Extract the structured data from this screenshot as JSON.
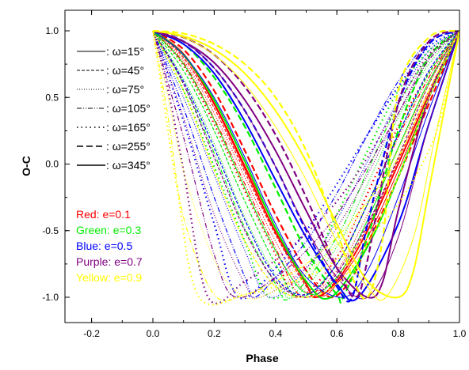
{
  "chart_data": {
    "type": "line",
    "title": "",
    "xlabel": "Phase",
    "ylabel": "O-C",
    "xlim": [
      -0.3,
      1.0
    ],
    "ylim": [
      -1.2,
      1.2
    ],
    "xticks": [
      -0.2,
      0.0,
      0.2,
      0.4,
      0.6,
      0.8,
      1.0
    ],
    "xtick_labels": [
      "-0.2",
      "0.0",
      "0.2",
      "0.4",
      "0.6",
      "0.8",
      "1.0"
    ],
    "yticks": [
      -1.0,
      -0.5,
      0.0,
      0.5,
      1.0
    ],
    "ytick_labels": [
      "-1.0",
      "-0.5",
      "0.0",
      "0.5",
      "1.0"
    ],
    "grid": false,
    "legend_placement": "top-left",
    "omega_legend": [
      {
        "label": ": ω=15°",
        "omega": 15,
        "style": "solid-thin"
      },
      {
        "label": ": ω=45°",
        "omega": 45,
        "style": "dash-short"
      },
      {
        "label": ": ω=75°",
        "omega": 75,
        "style": "dotted"
      },
      {
        "label": ": ω=105°",
        "omega": 105,
        "style": "dash-dot-dot"
      },
      {
        "label": ": ω=165°",
        "omega": 165,
        "style": "dotted-sparse"
      },
      {
        "label": ": ω=255°",
        "omega": 255,
        "style": "dash-long"
      },
      {
        "label": ": ω=345°",
        "omega": 345,
        "style": "solid-thick"
      }
    ],
    "eccentricity_legend": [
      {
        "label": "Red: e=0.1",
        "e": 0.1,
        "color": "#ff0000"
      },
      {
        "label": "Green: e=0.3",
        "e": 0.3,
        "color": "#00ee00"
      },
      {
        "label": "Blue: e=0.5",
        "e": 0.5,
        "color": "#0000ff"
      },
      {
        "label": "Purple: e=0.7",
        "e": 0.7,
        "color": "#800080"
      },
      {
        "label": "Yellow: e=0.9",
        "e": 0.9,
        "color": "#ffff00"
      }
    ],
    "series": [
      {
        "e": 0.1,
        "omega": 15,
        "x": [
          0.0,
          0.1,
          0.2,
          0.3,
          0.4,
          0.5,
          0.55,
          0.6,
          0.7,
          0.8,
          0.9,
          1.0
        ],
        "y": [
          1.0,
          0.83,
          0.46,
          -0.01,
          -0.48,
          -0.88,
          -0.99,
          -0.9,
          -0.55,
          -0.05,
          0.5,
          1.0
        ]
      },
      {
        "e": 0.1,
        "omega": 45,
        "x": [
          0.0,
          0.1,
          0.2,
          0.3,
          0.4,
          0.5,
          0.54,
          0.6,
          0.7,
          0.8,
          0.9,
          1.0
        ],
        "y": [
          1.0,
          0.8,
          0.42,
          -0.06,
          -0.53,
          -0.92,
          -1.0,
          -0.86,
          -0.47,
          0.03,
          0.55,
          1.0
        ]
      },
      {
        "e": 0.1,
        "omega": 75,
        "x": [
          0.0,
          0.1,
          0.2,
          0.3,
          0.4,
          0.5,
          0.6,
          0.7,
          0.8,
          0.9,
          1.0
        ],
        "y": [
          1.0,
          0.78,
          0.38,
          -0.1,
          -0.58,
          -0.96,
          -0.8,
          -0.38,
          0.12,
          0.6,
          1.0
        ]
      },
      {
        "e": 0.1,
        "omega": 105,
        "x": [
          0.0,
          0.1,
          0.2,
          0.3,
          0.4,
          0.49,
          0.6,
          0.7,
          0.8,
          0.9,
          1.0
        ],
        "y": [
          1.0,
          0.76,
          0.34,
          -0.15,
          -0.63,
          -1.0,
          -0.75,
          -0.3,
          0.2,
          0.65,
          1.0
        ]
      },
      {
        "e": 0.1,
        "omega": 165,
        "x": [
          0.0,
          0.1,
          0.2,
          0.3,
          0.4,
          0.47,
          0.6,
          0.7,
          0.8,
          0.9,
          1.0
        ],
        "y": [
          1.0,
          0.74,
          0.3,
          -0.2,
          -0.68,
          -1.0,
          -0.7,
          -0.22,
          0.28,
          0.68,
          1.0
        ]
      },
      {
        "e": 0.1,
        "omega": 255,
        "x": [
          0.0,
          0.1,
          0.2,
          0.3,
          0.4,
          0.5,
          0.58,
          0.65,
          0.7,
          0.8,
          0.9,
          1.0
        ],
        "y": [
          1.0,
          0.86,
          0.55,
          0.1,
          -0.38,
          -0.8,
          -1.0,
          -0.85,
          -0.6,
          -0.1,
          0.45,
          1.0
        ]
      },
      {
        "e": 0.1,
        "omega": 345,
        "x": [
          0.0,
          0.1,
          0.2,
          0.3,
          0.4,
          0.5,
          0.53,
          0.6,
          0.7,
          0.8,
          0.9,
          1.0
        ],
        "y": [
          1.0,
          0.82,
          0.45,
          -0.03,
          -0.51,
          -0.9,
          -1.0,
          -0.88,
          -0.5,
          0.0,
          0.52,
          1.0
        ]
      },
      {
        "e": 0.3,
        "omega": 15,
        "x": [
          0.0,
          0.1,
          0.2,
          0.3,
          0.4,
          0.5,
          0.6,
          0.7,
          0.8,
          0.9,
          1.0
        ],
        "y": [
          1.0,
          0.75,
          0.33,
          -0.18,
          -0.65,
          -0.97,
          -0.85,
          -0.42,
          0.12,
          0.62,
          1.0
        ]
      },
      {
        "e": 0.3,
        "omega": 45,
        "x": [
          0.0,
          0.1,
          0.2,
          0.3,
          0.4,
          0.48,
          0.6,
          0.7,
          0.8,
          0.9,
          1.0
        ],
        "y": [
          1.0,
          0.7,
          0.25,
          -0.28,
          -0.75,
          -1.0,
          -0.75,
          -0.3,
          0.22,
          0.68,
          1.0
        ]
      },
      {
        "e": 0.3,
        "omega": 75,
        "x": [
          0.0,
          0.1,
          0.2,
          0.3,
          0.4,
          0.46,
          0.6,
          0.7,
          0.8,
          0.9,
          1.0
        ],
        "y": [
          1.0,
          0.64,
          0.15,
          -0.4,
          -0.84,
          -1.0,
          -0.62,
          -0.15,
          0.35,
          0.75,
          1.0
        ]
      },
      {
        "e": 0.3,
        "omega": 105,
        "x": [
          0.0,
          0.1,
          0.2,
          0.3,
          0.4,
          0.45,
          0.6,
          0.7,
          0.8,
          0.9,
          1.0
        ],
        "y": [
          1.0,
          0.6,
          0.08,
          -0.48,
          -0.9,
          -1.0,
          -0.55,
          -0.05,
          0.45,
          0.8,
          1.0
        ]
      },
      {
        "e": 0.3,
        "omega": 165,
        "x": [
          0.0,
          0.1,
          0.2,
          0.3,
          0.38,
          0.5,
          0.6,
          0.7,
          0.8,
          0.9,
          1.0
        ],
        "y": [
          1.0,
          0.55,
          -0.02,
          -0.58,
          -1.0,
          -0.82,
          -0.38,
          0.1,
          0.55,
          0.85,
          1.0
        ]
      },
      {
        "e": 0.3,
        "omega": 255,
        "x": [
          0.0,
          0.1,
          0.2,
          0.3,
          0.4,
          0.5,
          0.6,
          0.62,
          0.7,
          0.8,
          0.9,
          1.0
        ],
        "y": [
          1.0,
          0.9,
          0.65,
          0.28,
          -0.18,
          -0.65,
          -0.98,
          -1.0,
          -0.55,
          0.25,
          0.8,
          1.0
        ]
      },
      {
        "e": 0.3,
        "omega": 345,
        "x": [
          0.0,
          0.1,
          0.2,
          0.3,
          0.4,
          0.5,
          0.58,
          0.7,
          0.8,
          0.9,
          1.0
        ],
        "y": [
          1.0,
          0.82,
          0.48,
          0.02,
          -0.48,
          -0.88,
          -1.0,
          -0.62,
          -0.1,
          0.5,
          1.0
        ]
      },
      {
        "e": 0.5,
        "omega": 15,
        "x": [
          0.0,
          0.1,
          0.2,
          0.3,
          0.4,
          0.5,
          0.62,
          0.7,
          0.8,
          0.9,
          1.0
        ],
        "y": [
          1.0,
          0.82,
          0.5,
          0.05,
          -0.45,
          -0.85,
          -1.0,
          -0.8,
          -0.25,
          0.4,
          1.0
        ]
      },
      {
        "e": 0.5,
        "omega": 45,
        "x": [
          0.0,
          0.1,
          0.2,
          0.3,
          0.4,
          0.5,
          0.6,
          0.7,
          0.8,
          0.9,
          1.0
        ],
        "y": [
          1.0,
          0.62,
          0.12,
          -0.42,
          -0.85,
          -0.98,
          -0.75,
          -0.3,
          0.22,
          0.7,
          1.0
        ]
      },
      {
        "e": 0.5,
        "omega": 75,
        "x": [
          0.0,
          0.1,
          0.2,
          0.3,
          0.38,
          0.5,
          0.6,
          0.7,
          0.8,
          0.9,
          1.0
        ],
        "y": [
          1.0,
          0.5,
          -0.08,
          -0.65,
          -1.0,
          -0.78,
          -0.42,
          0.02,
          0.48,
          0.85,
          1.0
        ]
      },
      {
        "e": 0.5,
        "omega": 105,
        "x": [
          0.0,
          0.1,
          0.2,
          0.3,
          0.33,
          0.4,
          0.5,
          0.6,
          0.7,
          0.8,
          0.9,
          1.0
        ],
        "y": [
          1.0,
          0.42,
          -0.25,
          -0.85,
          -1.0,
          -0.85,
          -0.58,
          -0.22,
          0.22,
          0.62,
          0.92,
          1.0
        ]
      },
      {
        "e": 0.5,
        "omega": 165,
        "x": [
          0.0,
          0.1,
          0.2,
          0.28,
          0.4,
          0.5,
          0.6,
          0.7,
          0.8,
          0.9,
          1.0
        ],
        "y": [
          1.0,
          0.32,
          -0.45,
          -1.0,
          -0.78,
          -0.5,
          -0.15,
          0.22,
          0.58,
          0.88,
          1.0
        ]
      },
      {
        "e": 0.5,
        "omega": 255,
        "x": [
          0.0,
          0.1,
          0.2,
          0.3,
          0.4,
          0.5,
          0.6,
          0.65,
          0.7,
          0.8,
          0.9,
          1.0
        ],
        "y": [
          1.0,
          0.92,
          0.72,
          0.4,
          -0.02,
          -0.5,
          -0.92,
          -1.0,
          -0.45,
          0.45,
          0.9,
          1.0
        ]
      },
      {
        "e": 0.5,
        "omega": 345,
        "x": [
          0.0,
          0.1,
          0.2,
          0.3,
          0.4,
          0.5,
          0.6,
          0.67,
          0.8,
          0.9,
          1.0
        ],
        "y": [
          1.0,
          0.9,
          0.68,
          0.32,
          -0.12,
          -0.55,
          -0.9,
          -1.0,
          -0.45,
          0.3,
          1.0
        ]
      },
      {
        "e": 0.7,
        "omega": 15,
        "x": [
          0.0,
          0.1,
          0.2,
          0.3,
          0.4,
          0.5,
          0.6,
          0.7,
          0.8,
          0.9,
          1.0
        ],
        "y": [
          1.0,
          0.92,
          0.72,
          0.4,
          -0.02,
          -0.48,
          -0.85,
          -1.0,
          -0.55,
          0.3,
          1.0
        ]
      },
      {
        "e": 0.7,
        "omega": 45,
        "x": [
          0.0,
          0.1,
          0.2,
          0.3,
          0.4,
          0.5,
          0.58,
          0.7,
          0.8,
          0.9,
          1.0
        ],
        "y": [
          1.0,
          0.6,
          0.05,
          -0.5,
          -0.88,
          -1.0,
          -0.88,
          -0.45,
          0.05,
          0.6,
          1.0
        ]
      },
      {
        "e": 0.7,
        "omega": 75,
        "x": [
          0.0,
          0.1,
          0.2,
          0.3,
          0.35,
          0.5,
          0.6,
          0.7,
          0.8,
          0.9,
          1.0
        ],
        "y": [
          1.0,
          0.35,
          -0.38,
          -0.9,
          -1.0,
          -0.78,
          -0.48,
          -0.08,
          0.38,
          0.8,
          1.0
        ]
      },
      {
        "e": 0.7,
        "omega": 105,
        "x": [
          0.0,
          0.1,
          0.2,
          0.27,
          0.4,
          0.5,
          0.6,
          0.7,
          0.8,
          0.9,
          1.0
        ],
        "y": [
          1.0,
          0.2,
          -0.68,
          -1.0,
          -0.85,
          -0.65,
          -0.38,
          -0.02,
          0.38,
          0.78,
          1.0
        ]
      },
      {
        "e": 0.7,
        "omega": 165,
        "x": [
          0.0,
          0.05,
          0.1,
          0.18,
          0.3,
          0.4,
          0.5,
          0.6,
          0.7,
          0.8,
          0.9,
          1.0
        ],
        "y": [
          1.0,
          0.55,
          -0.05,
          -1.0,
          -0.88,
          -0.72,
          -0.52,
          -0.28,
          0.05,
          0.45,
          0.82,
          1.0
        ]
      },
      {
        "e": 0.7,
        "omega": 255,
        "x": [
          0.0,
          0.1,
          0.2,
          0.3,
          0.4,
          0.5,
          0.6,
          0.66,
          0.7,
          0.8,
          0.9,
          1.0
        ],
        "y": [
          1.0,
          0.95,
          0.82,
          0.58,
          0.22,
          -0.25,
          -0.78,
          -1.0,
          -0.72,
          0.45,
          0.92,
          1.0
        ]
      },
      {
        "e": 0.7,
        "omega": 345,
        "x": [
          0.0,
          0.1,
          0.2,
          0.3,
          0.4,
          0.5,
          0.6,
          0.7,
          0.75,
          0.8,
          0.9,
          1.0
        ],
        "y": [
          1.0,
          0.92,
          0.76,
          0.48,
          0.1,
          -0.35,
          -0.78,
          -1.0,
          -0.88,
          -0.35,
          0.5,
          1.0
        ]
      },
      {
        "e": 0.9,
        "omega": 15,
        "x": [
          0.0,
          0.1,
          0.2,
          0.3,
          0.4,
          0.5,
          0.6,
          0.7,
          0.76,
          0.85,
          0.92,
          1.0
        ],
        "y": [
          1.0,
          0.95,
          0.82,
          0.6,
          0.28,
          -0.12,
          -0.58,
          -0.92,
          -1.0,
          -0.55,
          0.2,
          1.0
        ]
      },
      {
        "e": 0.9,
        "omega": 45,
        "x": [
          0.0,
          0.1,
          0.2,
          0.3,
          0.4,
          0.5,
          0.6,
          0.7,
          0.8,
          0.9,
          1.0
        ],
        "y": [
          1.0,
          0.55,
          -0.05,
          -0.58,
          -0.92,
          -1.0,
          -0.9,
          -0.6,
          -0.1,
          0.5,
          1.0
        ]
      },
      {
        "e": 0.9,
        "omega": 75,
        "x": [
          0.0,
          0.05,
          0.1,
          0.2,
          0.3,
          0.4,
          0.5,
          0.6,
          0.7,
          0.8,
          0.9,
          1.0
        ],
        "y": [
          1.0,
          0.5,
          -0.05,
          -0.72,
          -1.0,
          -0.95,
          -0.82,
          -0.6,
          -0.3,
          0.1,
          0.6,
          1.0
        ]
      },
      {
        "e": 0.9,
        "omega": 105,
        "x": [
          0.0,
          0.05,
          0.1,
          0.2,
          0.3,
          0.4,
          0.5,
          0.6,
          0.7,
          0.8,
          0.9,
          1.0
        ],
        "y": [
          1.0,
          0.35,
          -0.4,
          -0.98,
          -0.98,
          -0.88,
          -0.75,
          -0.55,
          -0.28,
          0.05,
          0.55,
          1.0
        ]
      },
      {
        "e": 0.9,
        "omega": 165,
        "x": [
          0.0,
          0.03,
          0.08,
          0.15,
          0.3,
          0.4,
          0.5,
          0.6,
          0.7,
          0.8,
          0.9,
          0.95,
          1.0
        ],
        "y": [
          1.0,
          0.55,
          -0.2,
          -1.0,
          -0.98,
          -0.92,
          -0.85,
          -0.72,
          -0.55,
          -0.3,
          0.1,
          0.45,
          1.0
        ]
      },
      {
        "e": 0.9,
        "omega": 255,
        "x": [
          0.0,
          0.1,
          0.2,
          0.3,
          0.4,
          0.5,
          0.6,
          0.65,
          0.7,
          0.75,
          0.8,
          0.9,
          1.0
        ],
        "y": [
          1.0,
          0.98,
          0.9,
          0.75,
          0.5,
          0.1,
          -0.5,
          -0.85,
          -1.0,
          -0.55,
          0.55,
          0.95,
          1.0
        ]
      },
      {
        "e": 0.9,
        "omega": 345,
        "x": [
          0.0,
          0.1,
          0.2,
          0.3,
          0.4,
          0.5,
          0.6,
          0.7,
          0.8,
          0.85,
          0.9,
          1.0
        ],
        "y": [
          1.0,
          0.96,
          0.86,
          0.68,
          0.4,
          0.02,
          -0.45,
          -0.88,
          -1.0,
          -0.8,
          -0.2,
          1.0
        ]
      }
    ]
  }
}
